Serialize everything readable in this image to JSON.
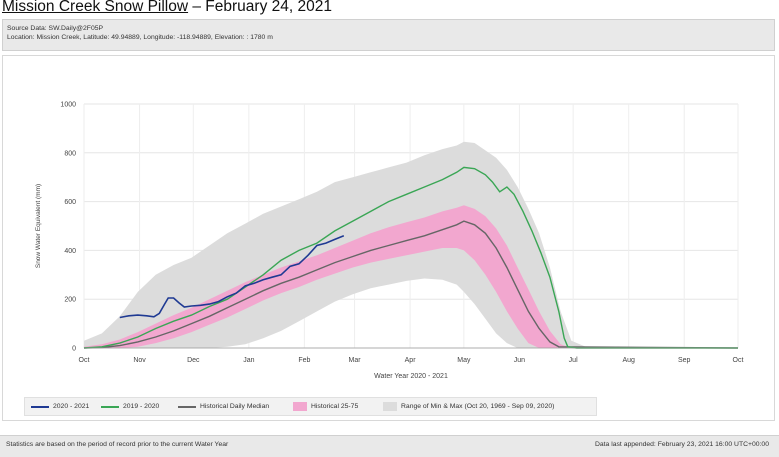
{
  "header": {
    "title_link": "Mission Creek Snow Pillow",
    "title_date": " – February 24, 2021"
  },
  "source": {
    "line1": "Source Data: SW.Daily@2F05P",
    "line2": "Location: Mission Creek, Latitude: 49.94889, Longitude: -118.94889, Elevation: : 1780 m"
  },
  "footer": {
    "left": "Statistics are based on the period of record prior to the current Water Year",
    "right": "Data last appended: February 23, 2021 16:00 UTC+00:00"
  },
  "chart_data": {
    "type": "line",
    "ylabel": "Snow Water Equivalent (mm)",
    "xlabel": "Water Year 2020 - 2021",
    "ylim": [
      0,
      1000
    ],
    "yticks": [
      0,
      200,
      400,
      600,
      800,
      1000
    ],
    "xlim": [
      0,
      365
    ],
    "month_ticks": [
      {
        "label": "Oct",
        "day": 0
      },
      {
        "label": "Nov",
        "day": 31
      },
      {
        "label": "Dec",
        "day": 61
      },
      {
        "label": "Jan",
        "day": 92
      },
      {
        "label": "Feb",
        "day": 123
      },
      {
        "label": "Mar",
        "day": 151
      },
      {
        "label": "Apr",
        "day": 182
      },
      {
        "label": "May",
        "day": 212
      },
      {
        "label": "Jun",
        "day": 243
      },
      {
        "label": "Jul",
        "day": 273
      },
      {
        "label": "Aug",
        "day": 304
      },
      {
        "label": "Sep",
        "day": 335
      },
      {
        "label": "Oct",
        "day": 365
      }
    ],
    "grid": true,
    "legend_position": "bottom",
    "colors": {
      "current": "#1f3a93",
      "previous": "#3aa655",
      "median": "#666666",
      "p25_75": "#f2a7cf",
      "minmax": "#dcdcdc"
    },
    "series": [
      {
        "name": "2020 - 2021",
        "x": [
          20,
          25,
          30,
          35,
          39,
          42,
          45,
          47,
          50,
          53,
          56,
          60,
          65,
          70,
          75,
          80,
          85,
          90,
          95,
          100,
          105,
          110,
          115,
          120,
          125,
          130,
          135,
          140,
          145
        ],
        "y": [
          125,
          132,
          135,
          132,
          128,
          142,
          180,
          205,
          205,
          185,
          168,
          172,
          175,
          180,
          190,
          210,
          225,
          255,
          265,
          280,
          290,
          300,
          335,
          345,
          380,
          420,
          430,
          445,
          460
        ]
      },
      {
        "name": "2019 - 2020",
        "x": [
          0,
          10,
          20,
          30,
          40,
          50,
          60,
          70,
          80,
          90,
          100,
          110,
          120,
          130,
          140,
          150,
          160,
          170,
          180,
          190,
          200,
          208,
          212,
          218,
          224,
          228,
          232,
          236,
          240,
          245,
          250,
          255,
          260,
          265,
          268,
          270,
          275,
          365
        ],
        "y": [
          0,
          5,
          20,
          45,
          80,
          110,
          135,
          170,
          200,
          250,
          300,
          360,
          400,
          430,
          480,
          520,
          560,
          600,
          630,
          660,
          690,
          720,
          740,
          735,
          710,
          680,
          640,
          660,
          630,
          560,
          480,
          390,
          290,
          150,
          40,
          5,
          0,
          0
        ]
      },
      {
        "name": "Historical Daily Median",
        "x": [
          0,
          10,
          20,
          30,
          40,
          50,
          60,
          70,
          80,
          90,
          100,
          110,
          120,
          130,
          140,
          150,
          160,
          170,
          180,
          190,
          200,
          208,
          212,
          218,
          224,
          230,
          236,
          242,
          248,
          254,
          260,
          265,
          365
        ],
        "y": [
          0,
          2,
          10,
          25,
          45,
          70,
          100,
          130,
          165,
          200,
          235,
          265,
          290,
          320,
          350,
          375,
          400,
          420,
          440,
          460,
          485,
          505,
          520,
          505,
          470,
          410,
          330,
          240,
          150,
          80,
          25,
          5,
          0
        ]
      },
      {
        "name": "Historical 25-75",
        "x": [
          0,
          10,
          20,
          30,
          40,
          50,
          60,
          70,
          80,
          90,
          100,
          110,
          120,
          130,
          140,
          150,
          160,
          170,
          180,
          190,
          200,
          208,
          212,
          218,
          224,
          230,
          236,
          242,
          248,
          254,
          260,
          266,
          272
        ],
        "low": [
          0,
          0,
          0,
          5,
          20,
          40,
          65,
          95,
          125,
          160,
          195,
          225,
          250,
          280,
          305,
          330,
          350,
          365,
          380,
          395,
          410,
          410,
          400,
          360,
          300,
          230,
          150,
          80,
          20,
          0,
          0,
          0,
          0
        ],
        "high": [
          5,
          15,
          35,
          65,
          100,
          135,
          165,
          200,
          235,
          270,
          300,
          330,
          355,
          380,
          410,
          440,
          470,
          495,
          515,
          535,
          560,
          575,
          585,
          570,
          540,
          490,
          420,
          330,
          240,
          150,
          70,
          15,
          0
        ]
      },
      {
        "name": "Range of Min & Max (Oct 20, 1969 - Sep 09, 2020)",
        "x": [
          0,
          10,
          20,
          30,
          40,
          50,
          60,
          70,
          80,
          90,
          100,
          110,
          120,
          130,
          140,
          150,
          160,
          170,
          180,
          190,
          200,
          208,
          212,
          218,
          224,
          230,
          236,
          242,
          248,
          254,
          260,
          266,
          272,
          280,
          365
        ],
        "low": [
          0,
          0,
          0,
          0,
          0,
          0,
          0,
          0,
          5,
          15,
          40,
          70,
          110,
          150,
          190,
          220,
          245,
          260,
          275,
          285,
          280,
          260,
          230,
          180,
          120,
          60,
          20,
          0,
          0,
          0,
          0,
          0,
          0,
          0,
          0
        ],
        "high": [
          30,
          60,
          130,
          230,
          300,
          340,
          370,
          420,
          470,
          510,
          550,
          580,
          610,
          640,
          680,
          700,
          720,
          740,
          760,
          790,
          815,
          830,
          845,
          840,
          810,
          780,
          730,
          660,
          570,
          470,
          330,
          150,
          30,
          5,
          0
        ]
      }
    ]
  },
  "legend": {
    "items": [
      {
        "label": "2020 - 2021"
      },
      {
        "label": "2019 - 2020"
      },
      {
        "label": "Historical Daily Median"
      },
      {
        "label": "Historical 25-75"
      },
      {
        "label": "Range of Min & Max (Oct 20, 1969 - Sep 09, 2020)"
      }
    ]
  }
}
